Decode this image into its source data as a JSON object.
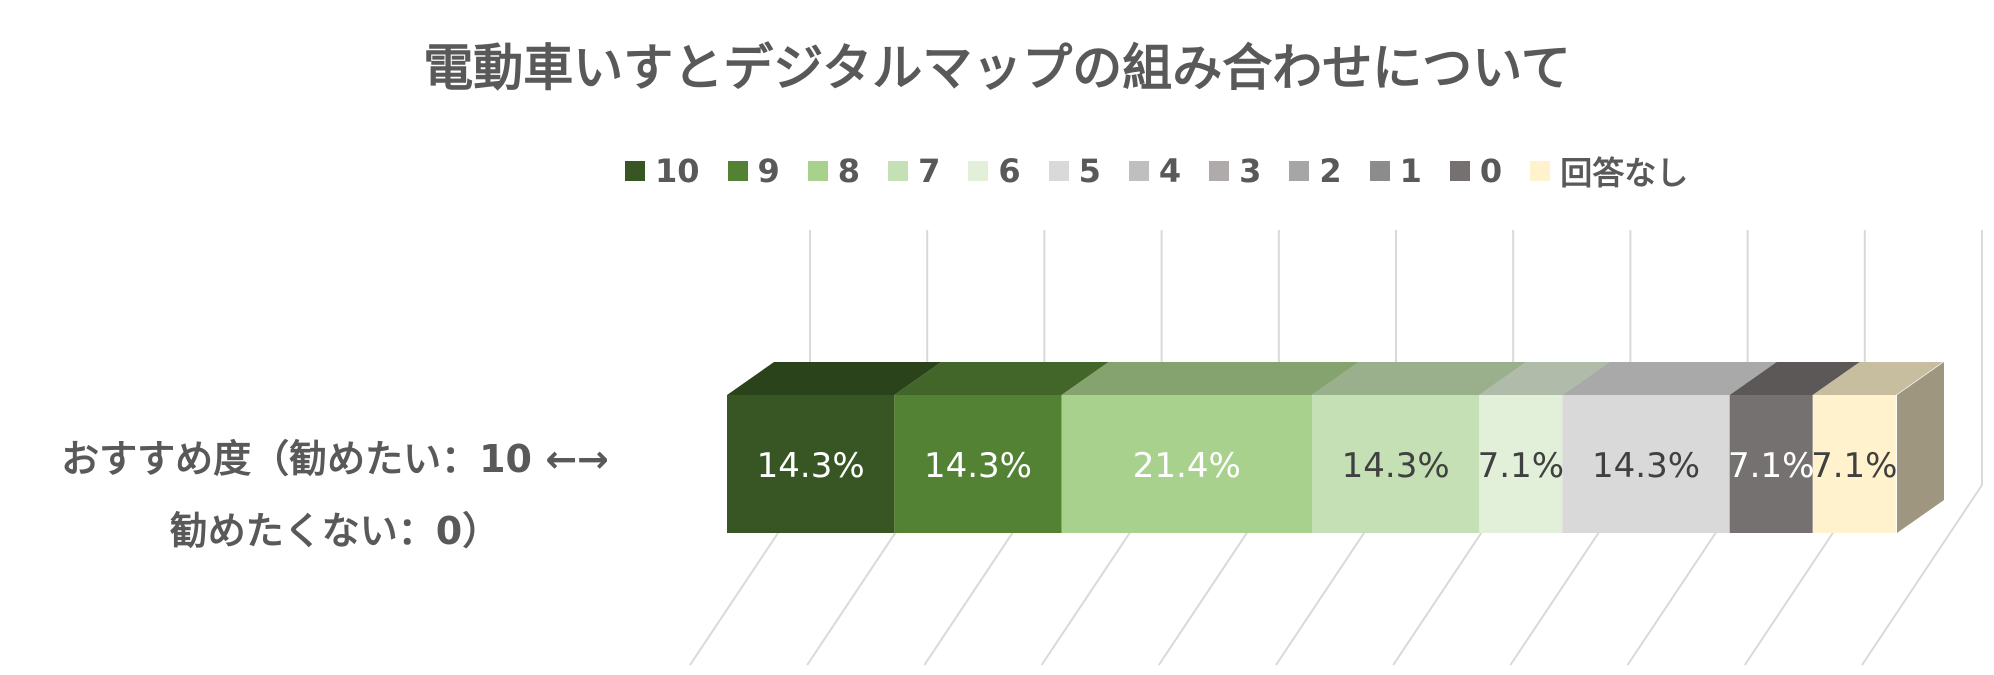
{
  "chart_data": {
    "type": "bar",
    "orientation": "horizontal-stacked-100",
    "title": "電動車いすとデジタルマップの組み合わせについて",
    "category_label_lines": [
      "おすすめ度（勧めたい：10 ←→",
      "勧めたくない：0）"
    ],
    "legend_position": "top",
    "grid": true,
    "series": [
      {
        "name": "10",
        "value": 14.3,
        "label": "14.3%",
        "color": "#375623",
        "label_color": "#ffffff"
      },
      {
        "name": "9",
        "value": 14.3,
        "label": "14.3%",
        "color": "#548235",
        "label_color": "#ffffff"
      },
      {
        "name": "8",
        "value": 21.4,
        "label": "21.4%",
        "color": "#a9d18e",
        "label_color": "#ffffff"
      },
      {
        "name": "7",
        "value": 14.3,
        "label": "14.3%",
        "color": "#c5e0b4",
        "label_color": "#404040"
      },
      {
        "name": "6",
        "value": 7.1,
        "label": "7.1%",
        "color": "#e2f0d9",
        "label_color": "#404040"
      },
      {
        "name": "5",
        "value": 14.3,
        "label": "14.3%",
        "color": "#d9d9d9",
        "label_color": "#404040"
      },
      {
        "name": "4",
        "value": 0,
        "label": "",
        "color": "#bfbfbf",
        "label_color": "#404040"
      },
      {
        "name": "3",
        "value": 0,
        "label": "",
        "color": "#afabab",
        "label_color": "#404040"
      },
      {
        "name": "2",
        "value": 0,
        "label": "",
        "color": "#a6a6a6",
        "label_color": "#404040"
      },
      {
        "name": "1",
        "value": 0,
        "label": "",
        "color": "#8c8c8c",
        "label_color": "#404040"
      },
      {
        "name": "0",
        "value": 7.1,
        "label": "7.1%",
        "color": "#767171",
        "label_color": "#ffffff"
      },
      {
        "name": "回答なし",
        "value": 7.1,
        "label": "7.1%",
        "color": "#fff2cc",
        "label_color": "#404040"
      }
    ],
    "xlim": [
      0,
      100
    ]
  }
}
